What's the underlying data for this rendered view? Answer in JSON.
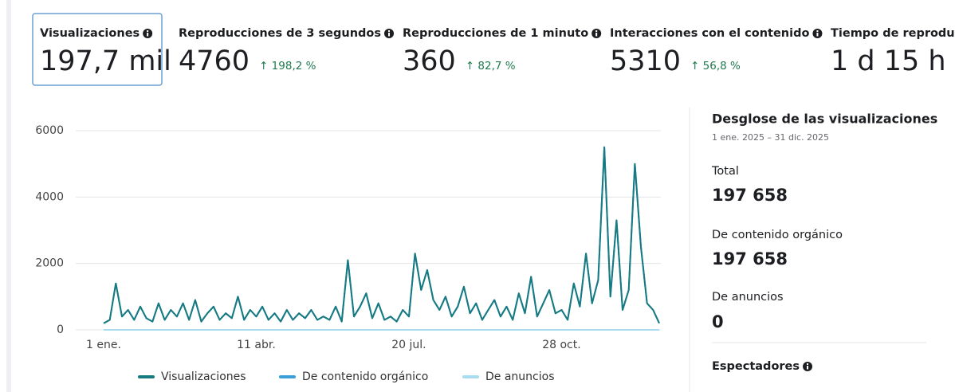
{
  "metrics": [
    {
      "label": "Visualizaciones",
      "value": "197,7 mil"
    },
    {
      "label": "Reproducciones de 3 segundos",
      "value": "4760",
      "change": "↑ 198,2 %"
    },
    {
      "label": "Reproducciones de 1 minuto",
      "value": "360",
      "change": "↑ 82,7 %"
    },
    {
      "label": "Interacciones con el contenido",
      "value": "5310",
      "change": "↑ 56,8 %"
    },
    {
      "label": "Tiempo de reprodu",
      "value": "1 d 15 h"
    }
  ],
  "chart_data": {
    "type": "line",
    "categories": [
      "1 ene.",
      null,
      null,
      null,
      null,
      null,
      null,
      null,
      null,
      null,
      null,
      null,
      null,
      null,
      null,
      null,
      null,
      null,
      null,
      null,
      null,
      null,
      null,
      null,
      null,
      "11 abr.",
      null,
      null,
      null,
      null,
      null,
      null,
      null,
      null,
      null,
      null,
      null,
      null,
      null,
      null,
      null,
      null,
      null,
      null,
      null,
      null,
      null,
      null,
      null,
      null,
      "20 jul.",
      null,
      null,
      null,
      null,
      null,
      null,
      null,
      null,
      null,
      null,
      null,
      null,
      null,
      null,
      null,
      null,
      null,
      null,
      null,
      null,
      null,
      null,
      null,
      null,
      "28 oct.",
      null,
      null,
      null,
      null,
      null,
      null,
      null,
      null,
      null,
      null,
      null,
      null,
      null,
      null,
      null,
      null
    ],
    "series": [
      {
        "name": "De anuncios",
        "color": "#a8dcee",
        "values": [
          0,
          0,
          0,
          0,
          0,
          0,
          0,
          0,
          0,
          0,
          0,
          0,
          0,
          0,
          0,
          0,
          0,
          0,
          0,
          0,
          0,
          0,
          0,
          0,
          0,
          0,
          0,
          0,
          0,
          0,
          0,
          0,
          0,
          0,
          0,
          0,
          0,
          0,
          0,
          0,
          0,
          0,
          0,
          0,
          0,
          0,
          0,
          0,
          0,
          0,
          0,
          0,
          0,
          0,
          0,
          0,
          0,
          0,
          0,
          0,
          0,
          0,
          0,
          0,
          0,
          0,
          0,
          0,
          0,
          0,
          0,
          0,
          0,
          0,
          0,
          0,
          0,
          0,
          0,
          0,
          0,
          0,
          0,
          0,
          0,
          0,
          0,
          0,
          0,
          0,
          0,
          0
        ]
      },
      {
        "name": "De contenido orgánico",
        "color": "#3a9fd6",
        "values": [
          200,
          300,
          1400,
          400,
          600,
          300,
          700,
          350,
          250,
          800,
          300,
          600,
          400,
          800,
          300,
          900,
          250,
          500,
          700,
          300,
          500,
          350,
          1000,
          300,
          600,
          400,
          700,
          300,
          500,
          250,
          600,
          300,
          500,
          350,
          600,
          300,
          400,
          300,
          700,
          250,
          2100,
          400,
          700,
          1100,
          350,
          800,
          300,
          400,
          250,
          600,
          400,
          2300,
          1200,
          1800,
          900,
          600,
          1000,
          400,
          700,
          1300,
          500,
          800,
          300,
          600,
          900,
          400,
          700,
          300,
          1100,
          500,
          1600,
          400,
          800,
          1200,
          500,
          600,
          300,
          1400,
          700,
          2300,
          800,
          1500,
          5500,
          1000,
          3300,
          600,
          1200,
          5000,
          2500,
          800,
          600,
          200
        ]
      },
      {
        "name": "Visualizaciones",
        "color": "#177a80",
        "values": [
          200,
          300,
          1400,
          400,
          600,
          300,
          700,
          350,
          250,
          800,
          300,
          600,
          400,
          800,
          300,
          900,
          250,
          500,
          700,
          300,
          500,
          350,
          1000,
          300,
          600,
          400,
          700,
          300,
          500,
          250,
          600,
          300,
          500,
          350,
          600,
          300,
          400,
          300,
          700,
          250,
          2100,
          400,
          700,
          1100,
          350,
          800,
          300,
          400,
          250,
          600,
          400,
          2300,
          1200,
          1800,
          900,
          600,
          1000,
          400,
          700,
          1300,
          500,
          800,
          300,
          600,
          900,
          400,
          700,
          300,
          1100,
          500,
          1600,
          400,
          800,
          1200,
          500,
          600,
          300,
          1400,
          700,
          2300,
          800,
          1500,
          5500,
          1000,
          3300,
          600,
          1200,
          5000,
          2500,
          800,
          600,
          200
        ]
      }
    ],
    "legend_order": [
      "Visualizaciones",
      "De contenido orgánico",
      "De anuncios"
    ],
    "ylim": [
      0,
      6000
    ],
    "yticks": [
      0,
      2000,
      4000,
      6000
    ],
    "grid": true
  },
  "breakdown": {
    "title": "Desglose de las visualizaciones",
    "date_range": "1 ene. 2025 – 31 dic. 2025",
    "items": [
      {
        "label": "Total",
        "value": "197 658"
      },
      {
        "label": "De contenido orgánico",
        "value": "197 658"
      },
      {
        "label": "De anuncios",
        "value": "0"
      }
    ],
    "footer": "Espectadores"
  }
}
